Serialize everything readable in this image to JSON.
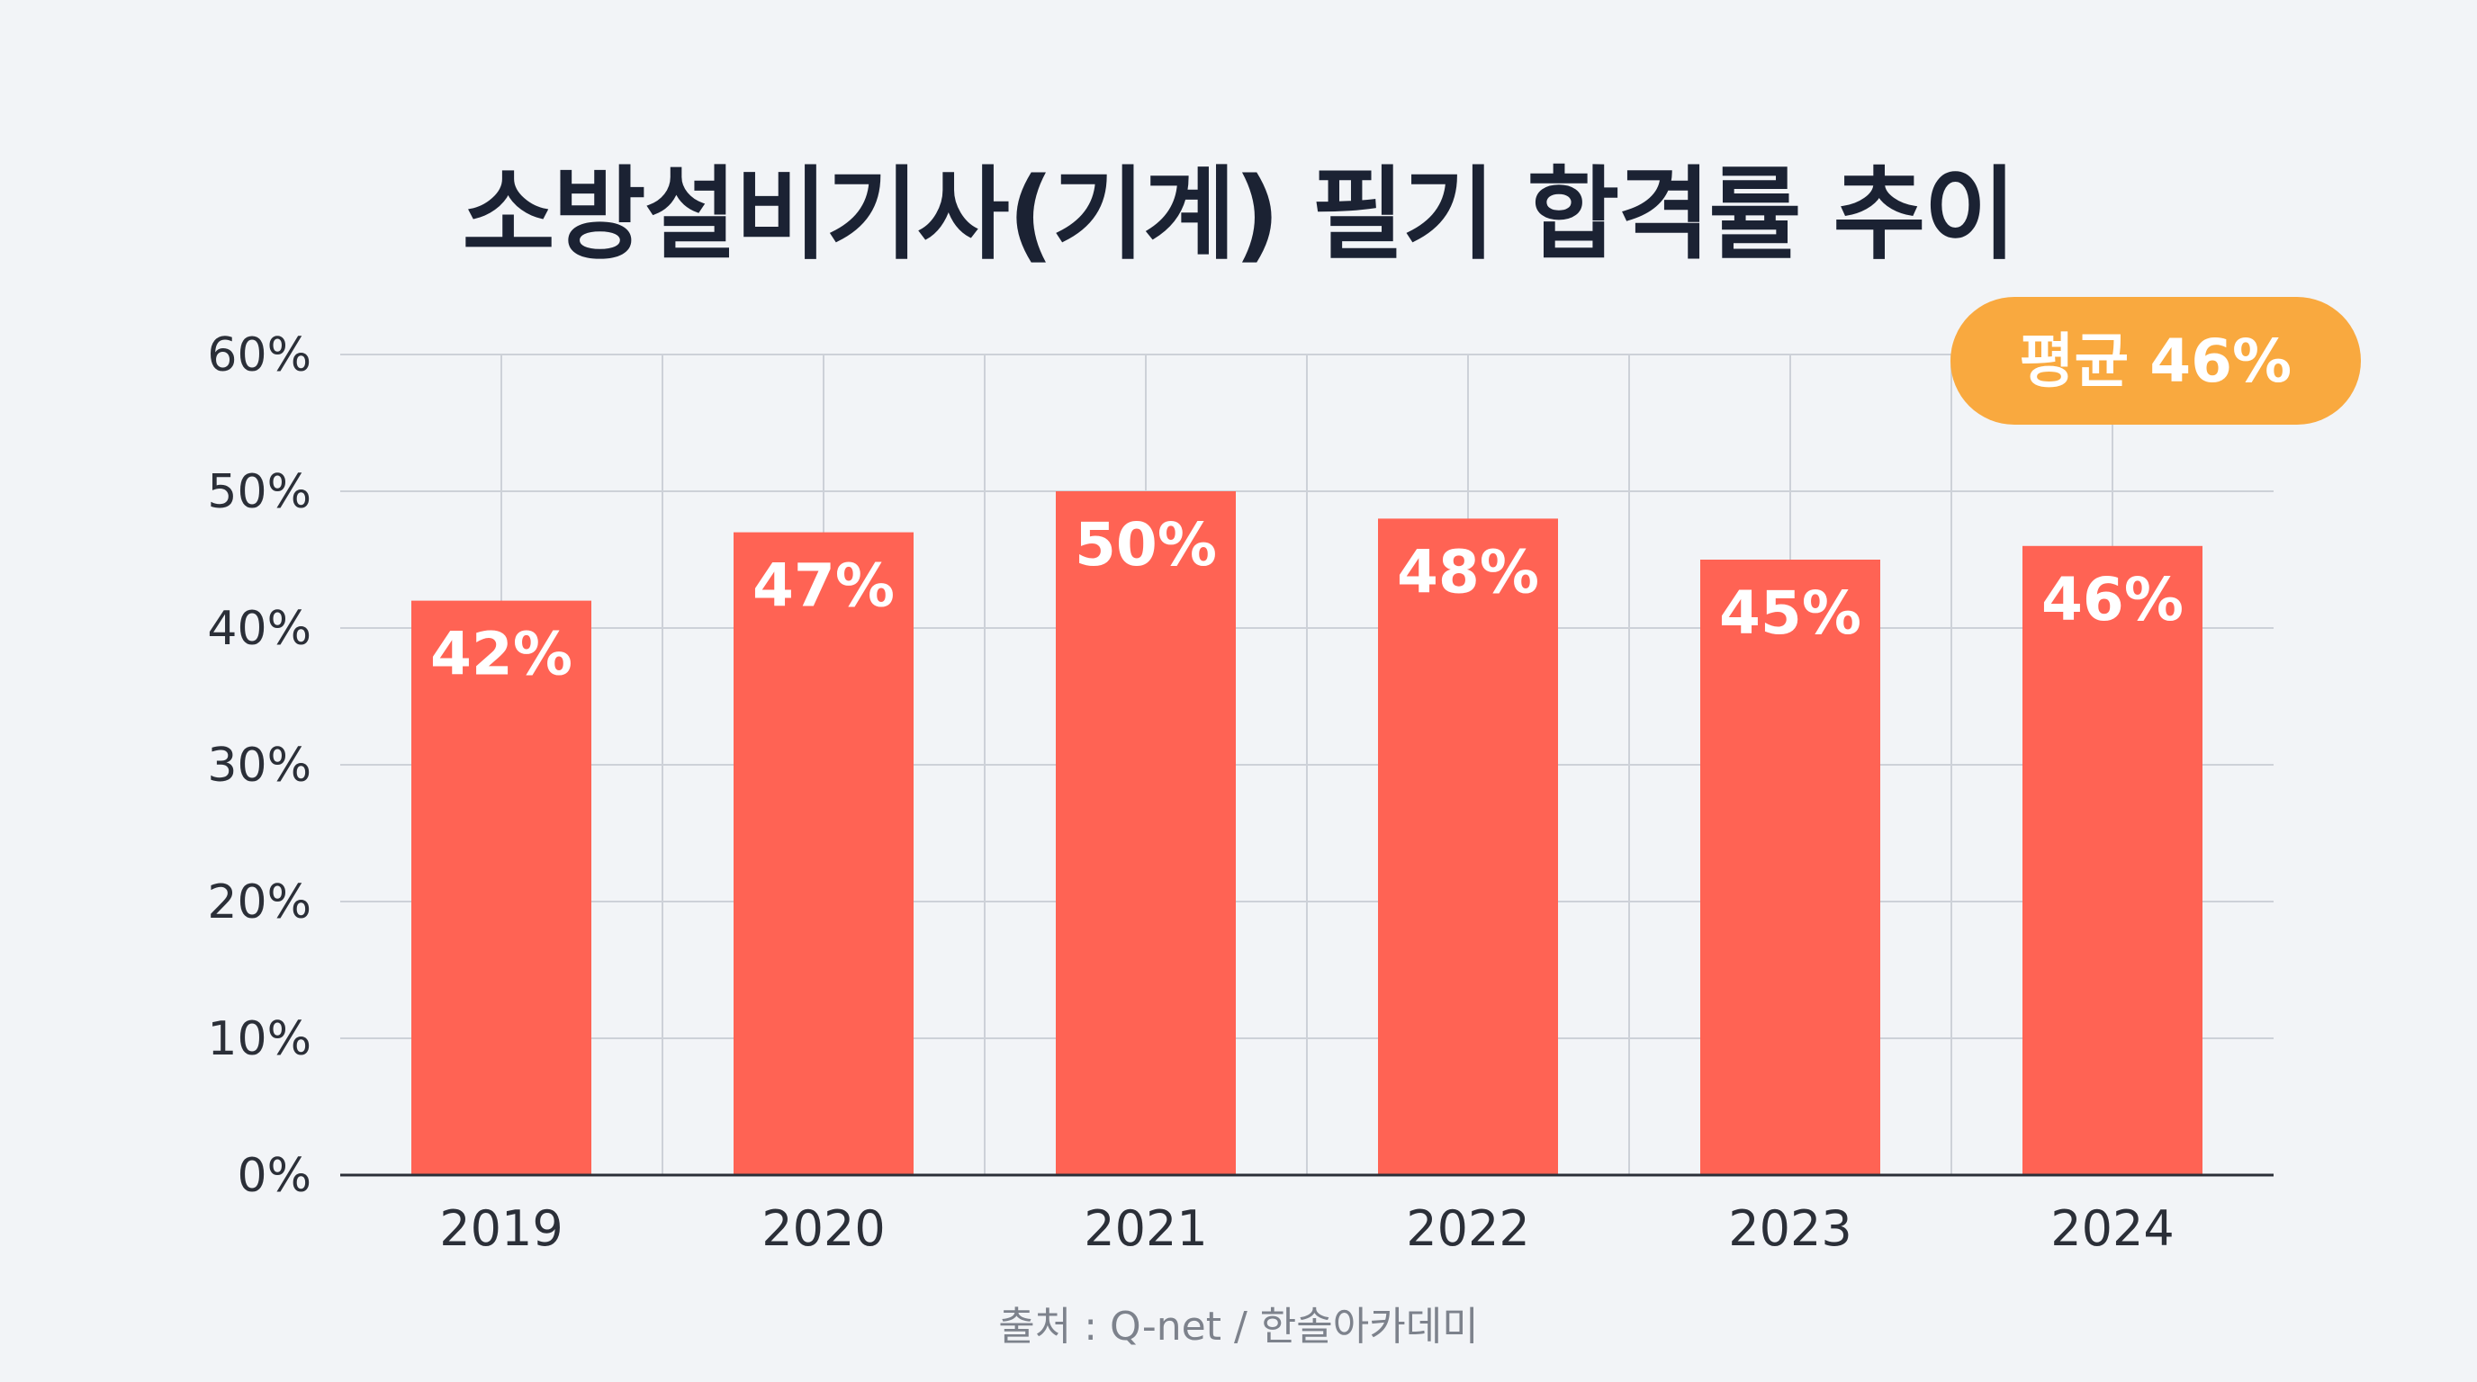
{
  "chart_data": {
    "type": "bar",
    "title": "소방설비기사(기계) 필기 합격률 추이",
    "categories": [
      "2019",
      "2020",
      "2021",
      "2022",
      "2023",
      "2024"
    ],
    "values": [
      42,
      47,
      50,
      48,
      45,
      46
    ],
    "value_labels": [
      "42%",
      "47%",
      "50%",
      "48%",
      "45%",
      "46%"
    ],
    "ylim": [
      0,
      60
    ],
    "yticks": [
      0,
      10,
      20,
      30,
      40,
      50,
      60
    ],
    "ytick_labels": [
      "0%",
      "10%",
      "20%",
      "30%",
      "40%",
      "50%",
      "60%"
    ],
    "xlabel": "",
    "ylabel": "",
    "grid": true,
    "annotation": {
      "text": "평균 46%",
      "category": "2024"
    },
    "colors": {
      "bar": "#ff6354",
      "badge": "#f9a93f",
      "grid": "#cdd1d8",
      "axis": "#2b2f38"
    }
  },
  "source": "출처 : Q-net / 한솔아카데미"
}
